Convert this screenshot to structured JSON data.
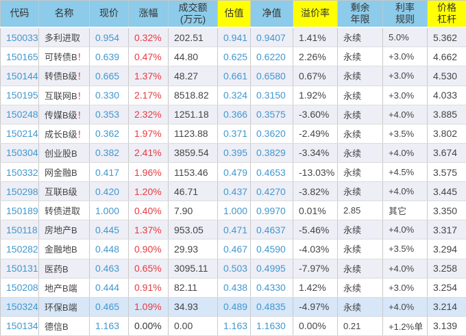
{
  "colors": {
    "header_blue": "#8CCBE9",
    "header_highlight_yellow": "#FFFF00",
    "row_alt_background": "#EEEEF6",
    "selected_row_background": "#D7E7F8",
    "numeric_blue_text": "#4097CE",
    "change_red_text": "#E8393D",
    "dark_text": "#444444"
  },
  "table": {
    "columns": [
      {
        "key": "code",
        "label": "代码",
        "highlight": false
      },
      {
        "key": "name",
        "label": "名称",
        "highlight": false
      },
      {
        "key": "price",
        "label": "现价",
        "highlight": false
      },
      {
        "key": "change",
        "label": "涨幅",
        "highlight": false
      },
      {
        "key": "volume",
        "label": "成交额\n(万元)",
        "highlight": false
      },
      {
        "key": "estimate",
        "label": "估值",
        "highlight": true
      },
      {
        "key": "net_value",
        "label": "净值",
        "highlight": false
      },
      {
        "key": "premium",
        "label": "溢价率",
        "highlight": true
      },
      {
        "key": "years",
        "label": "剩余\n年限",
        "highlight": false
      },
      {
        "key": "rate_rule",
        "label": "利率\n规则",
        "highlight": false
      },
      {
        "key": "leverage",
        "label": "价格\n杠杆",
        "highlight": true
      }
    ],
    "rows": [
      {
        "code": "150033",
        "name": "多利进取",
        "alert": "",
        "price": "0.954",
        "change": "0.32%",
        "change_up": true,
        "volume": "202.51",
        "estimate": "0.941",
        "net_value": "0.9407",
        "premium": "1.41%",
        "years": "永续",
        "rate_rule": "5.0%",
        "leverage": "5.362",
        "selected": false
      },
      {
        "code": "150165",
        "name": "可转债B",
        "alert": "！",
        "price": "0.639",
        "change": "0.47%",
        "change_up": true,
        "volume": "44.80",
        "estimate": "0.625",
        "net_value": "0.6220",
        "premium": "2.26%",
        "years": "永续",
        "rate_rule": "+3.0%",
        "leverage": "4.662",
        "selected": false
      },
      {
        "code": "150144",
        "name": "转债B级",
        "alert": "！",
        "price": "0.665",
        "change": "1.37%",
        "change_up": true,
        "volume": "48.27",
        "estimate": "0.661",
        "net_value": "0.6580",
        "premium": "0.67%",
        "years": "永续",
        "rate_rule": "+3.0%",
        "leverage": "4.530",
        "selected": false
      },
      {
        "code": "150195",
        "name": "互联网B",
        "alert": "！",
        "price": "0.330",
        "change": "2.17%",
        "change_up": true,
        "volume": "8518.82",
        "estimate": "0.324",
        "net_value": "0.3150",
        "premium": "1.92%",
        "years": "永续",
        "rate_rule": "+3.0%",
        "leverage": "4.033",
        "selected": false
      },
      {
        "code": "150248",
        "name": "传媒B级",
        "alert": "！",
        "price": "0.353",
        "change": "2.32%",
        "change_up": true,
        "volume": "1251.18",
        "estimate": "0.366",
        "net_value": "0.3575",
        "premium": "-3.60%",
        "years": "永续",
        "rate_rule": "+4.0%",
        "leverage": "3.885",
        "selected": false
      },
      {
        "code": "150214",
        "name": "成长B级",
        "alert": "！",
        "price": "0.362",
        "change": "1.97%",
        "change_up": true,
        "volume": "1123.88",
        "estimate": "0.371",
        "net_value": "0.3620",
        "premium": "-2.49%",
        "years": "永续",
        "rate_rule": "+3.5%",
        "leverage": "3.802",
        "selected": false
      },
      {
        "code": "150304",
        "name": "创业股B",
        "alert": "",
        "price": "0.382",
        "change": "2.41%",
        "change_up": true,
        "volume": "3859.54",
        "estimate": "0.395",
        "net_value": "0.3829",
        "premium": "-3.34%",
        "years": "永续",
        "rate_rule": "+4.0%",
        "leverage": "3.674",
        "selected": false
      },
      {
        "code": "150332",
        "name": "网金融B",
        "alert": "",
        "price": "0.417",
        "change": "1.96%",
        "change_up": true,
        "volume": "1153.46",
        "estimate": "0.479",
        "net_value": "0.4653",
        "premium": "-13.03%",
        "years": "永续",
        "rate_rule": "+4.5%",
        "leverage": "3.575",
        "selected": false
      },
      {
        "code": "150298",
        "name": "互联B级",
        "alert": "",
        "price": "0.420",
        "change": "1.20%",
        "change_up": true,
        "volume": "46.71",
        "estimate": "0.437",
        "net_value": "0.4270",
        "premium": "-3.82%",
        "years": "永续",
        "rate_rule": "+4.0%",
        "leverage": "3.445",
        "selected": false
      },
      {
        "code": "150189",
        "name": "转债进取",
        "alert": "",
        "price": "1.000",
        "change": "0.40%",
        "change_up": true,
        "volume": "7.90",
        "estimate": "1.000",
        "net_value": "0.9970",
        "premium": "0.01%",
        "years": "2.85",
        "rate_rule": "其它",
        "leverage": "3.350",
        "selected": false
      },
      {
        "code": "150118",
        "name": "房地产B",
        "alert": "",
        "price": "0.445",
        "change": "1.37%",
        "change_up": true,
        "volume": "953.05",
        "estimate": "0.471",
        "net_value": "0.4637",
        "premium": "-5.46%",
        "years": "永续",
        "rate_rule": "+4.0%",
        "leverage": "3.317",
        "selected": false
      },
      {
        "code": "150282",
        "name": "金融地B",
        "alert": "",
        "price": "0.448",
        "change": "0.90%",
        "change_up": true,
        "volume": "29.93",
        "estimate": "0.467",
        "net_value": "0.4590",
        "premium": "-4.03%",
        "years": "永续",
        "rate_rule": "+3.5%",
        "leverage": "3.294",
        "selected": false
      },
      {
        "code": "150131",
        "name": "医药B",
        "alert": "",
        "price": "0.463",
        "change": "0.65%",
        "change_up": true,
        "volume": "3095.11",
        "estimate": "0.503",
        "net_value": "0.4995",
        "premium": "-7.97%",
        "years": "永续",
        "rate_rule": "+4.0%",
        "leverage": "3.258",
        "selected": false
      },
      {
        "code": "150208",
        "name": "地产B端",
        "alert": "",
        "price": "0.444",
        "change": "0.91%",
        "change_up": true,
        "volume": "82.11",
        "estimate": "0.438",
        "net_value": "0.4330",
        "premium": "1.42%",
        "years": "永续",
        "rate_rule": "+3.0%",
        "leverage": "3.254",
        "selected": false
      },
      {
        "code": "150324",
        "name": "环保B端",
        "alert": "",
        "price": "0.465",
        "change": "1.09%",
        "change_up": true,
        "volume": "34.93",
        "estimate": "0.489",
        "net_value": "0.4835",
        "premium": "-4.97%",
        "years": "永续",
        "rate_rule": "+4.0%",
        "leverage": "3.214",
        "selected": true
      },
      {
        "code": "150134",
        "name": "德信B",
        "alert": "",
        "price": "1.163",
        "change": "0.00%",
        "change_up": false,
        "volume": "0.00",
        "estimate": "1.163",
        "net_value": "1.1630",
        "premium": "0.00%",
        "years": "0.21",
        "rate_rule": "+1.2%单",
        "leverage": "3.139",
        "selected": false
      }
    ]
  }
}
